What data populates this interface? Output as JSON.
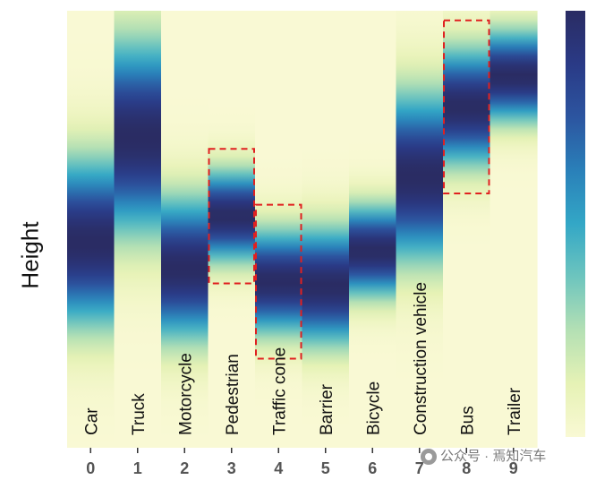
{
  "chart_data": {
    "type": "heatmap",
    "title": "",
    "ylabel": "Height",
    "xlabel": "",
    "ylim": [
      0,
      1
    ],
    "colormap": {
      "name": "YlGnBu",
      "stops": [
        "#f9f9d4",
        "#e6f2b5",
        "#b4e0b4",
        "#6ec5be",
        "#33a7c6",
        "#2a80b9",
        "#2c55a0",
        "#2a3a86",
        "#2a2c63"
      ]
    },
    "categories": [
      {
        "index": "0",
        "label": "Car",
        "peak": 0.47,
        "spread": 0.13
      },
      {
        "index": "1",
        "label": "Truck",
        "peak": 0.71,
        "spread": 0.15
      },
      {
        "index": "2",
        "label": "Motorcycle",
        "peak": 0.41,
        "spread": 0.11
      },
      {
        "index": "3",
        "label": "Pedestrian",
        "peak": 0.53,
        "spread": 0.07
      },
      {
        "index": "4",
        "label": "Traffic cone",
        "peak": 0.38,
        "spread": 0.08
      },
      {
        "index": "5",
        "label": "Barrier",
        "peak": 0.37,
        "spread": 0.09
      },
      {
        "index": "6",
        "label": "Bicycle",
        "peak": 0.45,
        "spread": 0.07
      },
      {
        "index": "7",
        "label": "Construction vehicle",
        "peak": 0.62,
        "spread": 0.13
      },
      {
        "index": "8",
        "label": "Bus",
        "peak": 0.78,
        "spread": 0.09
      },
      {
        "index": "9",
        "label": "Trailer",
        "peak": 0.85,
        "spread": 0.07
      }
    ],
    "highlighted": [
      "3",
      "4",
      "8"
    ],
    "highlight_color": "#e02020"
  },
  "watermark": "公众号 · 焉知汽车"
}
